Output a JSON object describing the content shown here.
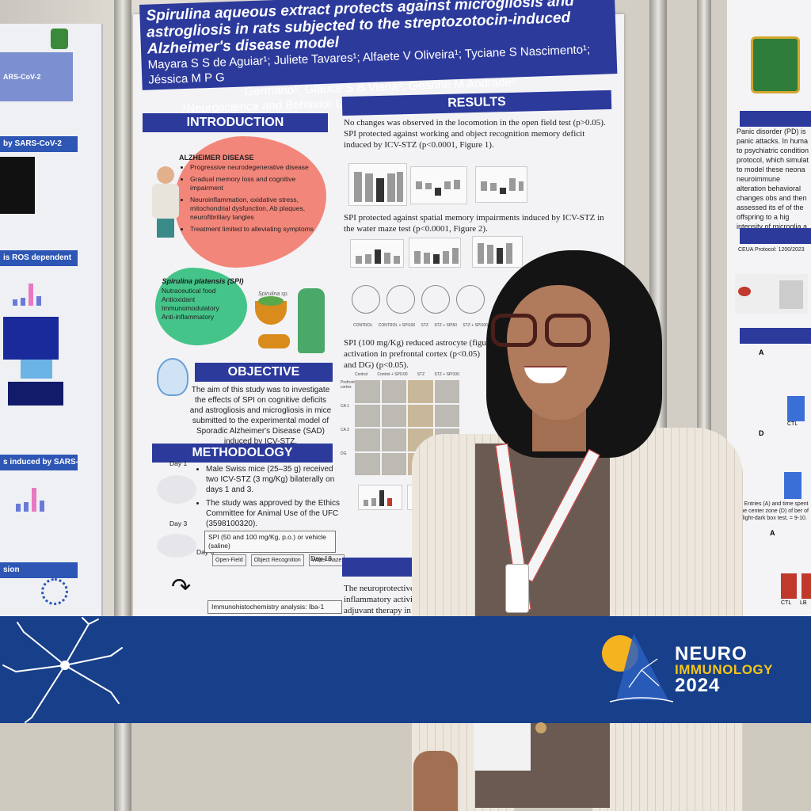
{
  "poster": {
    "title": "Spirulina aqueous extract protects against microgliosis and astrogliosis in rats subjected to the streptozotocin-induced Alzheimer's disease model",
    "authors_line1": "Mayara S S de Aguiar¹; Juliete Tavares¹; Alfaete V Oliveira¹; Tyciane S Nascimento¹; Jéssica M P G",
    "authors_line2": "Germano¹; Glauce S B Viana¹; Geanne M Andrade¹",
    "affiliation": "¹Neuroscience and Behavior Laboratory, Federal University of Ceara, Brazil",
    "sections": {
      "introduction": "INTRODUCTION",
      "results": "RESULTS",
      "objective": "OBJECTIVE",
      "methodology": "METHODOLOGY",
      "conclusion": "CON"
    },
    "intro": {
      "alz_title": "ALZHEIMER DISEASE",
      "alz_items": [
        "Progressive neurodegenerative disease",
        "Gradual memory loss and cognitive impairment",
        "Neuroinflammation, oxidative stress, mitochondrial dysfunction, Ab plaques, neurofibrillary tangles",
        "Treatment limited to alleviating symptoms"
      ],
      "spi_title": "Spirulina platensis (SPI)",
      "spi_items": [
        "Nutraceutical food",
        "Antioxidant",
        "Immunomodulatory",
        "Anti-inflammatory"
      ],
      "spi_label": "Spirulina sp."
    },
    "objective_text": "The aim of this study was to investigate the effects of SPI on cognitive deficits and astrogliosis and microgliosis in mice submitted to the experimental model of Sporadic Alzheimer's Disease (SAD) induced by ICV-STZ.",
    "methodology": {
      "day1": "Day 1",
      "day3": "Day 3",
      "day3b": "Day 3",
      "day18": "Day 18",
      "items": [
        "Male Swiss mice (25–35 g) received two ICV-STZ (3 mg/Kg) bilaterally on days 1 and 3.",
        "The study was approved by the Ethics Committee for Animal Use of the UFC (3598100320)."
      ],
      "treatment": "SPI (50 and 100 mg/Kg, p.o.) or vehicle (saline)",
      "tests": [
        "Open-Field",
        "Object Recognition",
        "Water maze"
      ],
      "ihc": "Immunohistochemistry analysis: Iba-1"
    },
    "results": {
      "r1": "No changes was observed in the locomotion in the open field test (p>0.05). SPI protected against working and object recognition memory deficit induced by ICV-STZ (p<0.0001, Figure 1).",
      "r2": "SPI protected against spatial memory impairments induced by ICV-STZ in the water maze test (p<0.0001, Figure 2).",
      "r3": "SPI (100 mg/Kg) reduced astrocyte (figure activation in prefrontal cortex (p<0.05) and DG) (p<0.05).",
      "maze_labels": [
        "CONTROL",
        "CONTROL + SPI100",
        "STZ",
        "STZ + SPI50",
        "STZ + SPI100"
      ],
      "micro_cols": [
        "Control",
        "Control + SPI100",
        "STZ",
        "STZ + SPI100"
      ],
      "micro_rows": [
        "Prefrontal cortex",
        "CA 1",
        "CA 3",
        "DG"
      ],
      "conclusion": "The neuroprotective action of inflammatory activity. These fi adjuvant therapy in the treatm"
    }
  },
  "left_poster": {
    "title_fragment": "ARS-CoV-2",
    "bar1": "by SARS-CoV-2",
    "bar2": "is ROS dependent",
    "bar3": "s induced by SARS-CoV-2",
    "bar4": "sion"
  },
  "right_poster": {
    "text": "Panic disorder (PD) is panic attacks. In huma to psychiatric condition protocol, which simulat to model these neona neuroimmune alteration behavioral changes obs and then assessed its ef of the offspring to a hig intensity of microglia a matter (PAG).",
    "protocol": "CEUA Protocol: 1200/2023",
    "caption": "e 1. Entries (A) and time spent in the center zone (D) of ber of the light-dark box test, = 9-10.",
    "labels": [
      "A",
      "D",
      "A",
      "CTL",
      "CTL",
      "LB"
    ]
  },
  "branding": {
    "line1": "NEURO",
    "line2": "IMMUNOLOGY",
    "line3": "2024"
  },
  "colors": {
    "banner": "#173f8a",
    "poster_header": "#2c3a9c",
    "accent_yellow": "#f5c518"
  }
}
